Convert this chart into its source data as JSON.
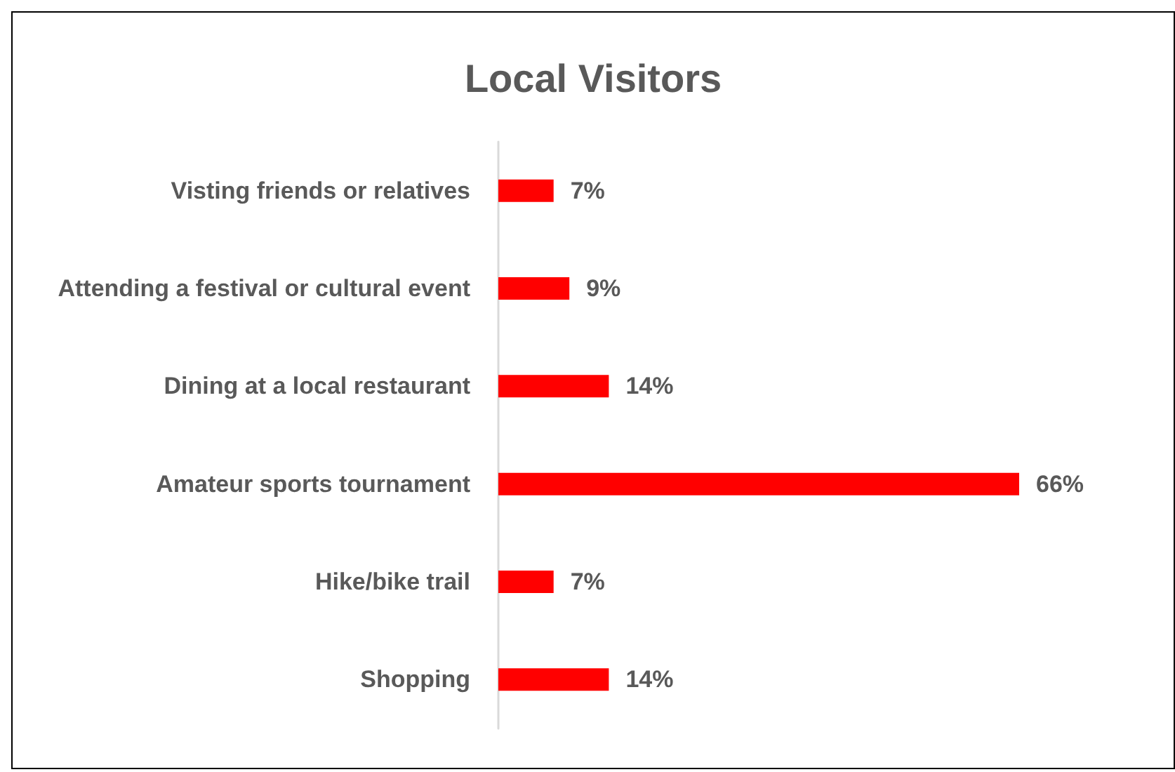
{
  "chart_data": {
    "type": "bar",
    "orientation": "horizontal",
    "title": "Local Visitors",
    "categories": [
      "Visting friends or relatives",
      "Attending a festival or cultural event",
      "Dining at a local restaurant",
      "Amateur sports tournament",
      "Hike/bike trail",
      "Shopping"
    ],
    "values": [
      7,
      9,
      14,
      66,
      7,
      14
    ],
    "value_labels": [
      "7%",
      "9%",
      "14%",
      "66%",
      "7%",
      "14%"
    ],
    "color": "#ff0000",
    "tick_labels": "y"
  }
}
